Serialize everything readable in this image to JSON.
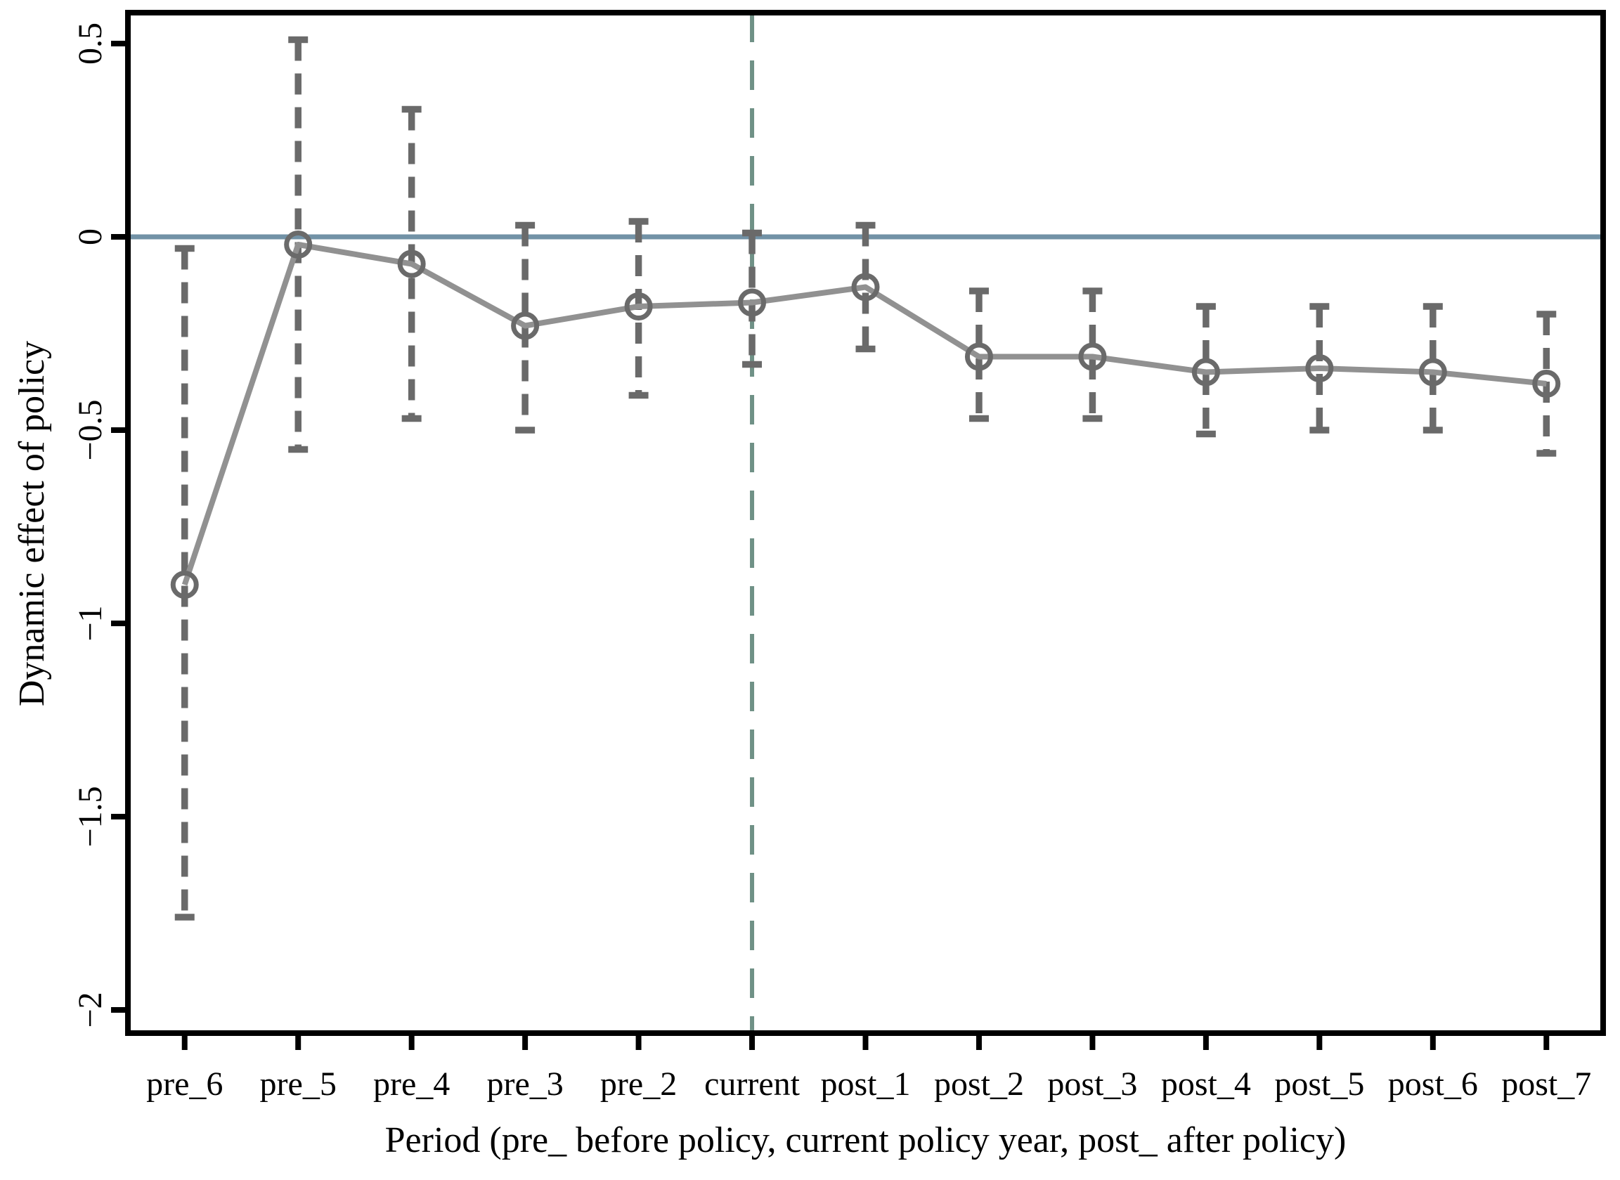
{
  "figure": {
    "background": "#ffffff"
  },
  "chart_data": {
    "type": "line",
    "title": "",
    "xlabel": "Period (pre_ before policy, current policy year, post_ after policy)",
    "ylabel": "Dynamic effect of policy",
    "categories": [
      "pre_6",
      "pre_5",
      "pre_4",
      "pre_3",
      "pre_2",
      "current",
      "post_1",
      "post_2",
      "post_3",
      "post_4",
      "post_5",
      "post_6",
      "post_7"
    ],
    "values": [
      -0.9,
      -0.02,
      -0.07,
      -0.23,
      -0.18,
      -0.17,
      -0.13,
      -0.31,
      -0.31,
      -0.35,
      -0.34,
      -0.35,
      -0.38
    ],
    "ci_high": [
      -0.03,
      0.51,
      0.33,
      0.03,
      0.04,
      0.01,
      0.03,
      -0.14,
      -0.14,
      -0.18,
      -0.18,
      -0.18,
      -0.2
    ],
    "ci_low": [
      -1.76,
      -0.55,
      -0.47,
      -0.5,
      -0.41,
      -0.33,
      -0.29,
      -0.47,
      -0.47,
      -0.51,
      -0.5,
      -0.5,
      -0.56
    ],
    "ytick_values": [
      0.5,
      0,
      -0.5,
      -1,
      -1.5,
      -2
    ],
    "ytick_labels": [
      "0.5",
      "0",
      "−0.5",
      "−1",
      "−1.5",
      "−2"
    ],
    "ylim": [
      -2.06,
      0.58
    ],
    "grid": "off",
    "legend": "none",
    "marker_shape": "open-circle",
    "error_bar_style": "dashed-with-caps",
    "reference_lines": {
      "horizontal_zero_line": 0,
      "vertical_event_line_at": "current"
    },
    "colors": {
      "zero_line": "#7292a6",
      "event_line": "#6f9186",
      "series_line": "#919191",
      "marker": "#6a6a6a",
      "error_bar": "#6a6a6a",
      "axis": "#000000",
      "text": "#000000"
    }
  }
}
